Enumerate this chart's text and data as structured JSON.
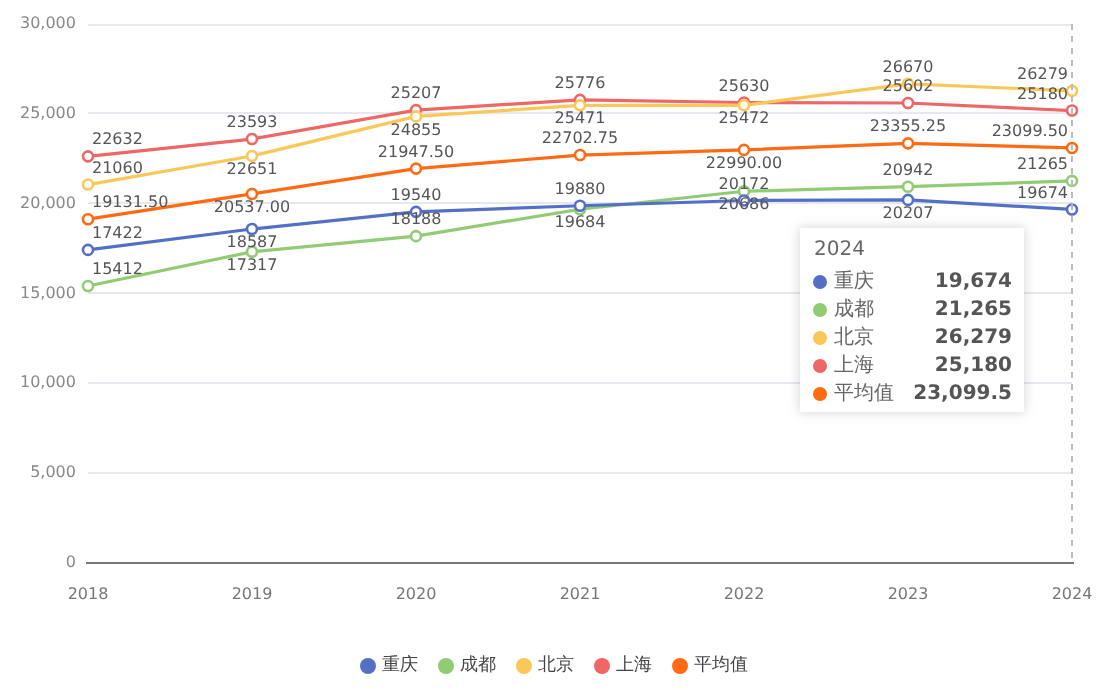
{
  "chart_data": {
    "type": "line",
    "categories": [
      "2018",
      "2019",
      "2020",
      "2021",
      "2022",
      "2023",
      "2024"
    ],
    "series": [
      {
        "name": "重庆",
        "color": "#5470c6",
        "values": [
          17422,
          18587,
          19540,
          19880,
          20172,
          20207,
          19674
        ]
      },
      {
        "name": "成都",
        "color": "#91cc75",
        "values": [
          15412,
          17317,
          18188,
          19684,
          20686,
          20942,
          21265
        ]
      },
      {
        "name": "北京",
        "color": "#fac858",
        "values": [
          21060,
          22651,
          24855,
          25471,
          25472,
          26670,
          26279
        ]
      },
      {
        "name": "上海",
        "color": "#ee6666",
        "values": [
          22632,
          23593,
          25207,
          25776,
          25630,
          25602,
          25180
        ]
      },
      {
        "name": "平均值",
        "color": "#ff6a13",
        "values": [
          19131.5,
          20537,
          21947.5,
          22702.75,
          22990,
          23355.25,
          23099.5
        ],
        "value_labels": [
          "19131.50",
          "20537.00",
          "21947.50",
          "22702.75",
          "22990.00",
          "23355.25",
          "23099.50"
        ]
      }
    ],
    "ylim": [
      0,
      30000
    ],
    "yticks": [
      {
        "value": 0,
        "label": "0"
      },
      {
        "value": 5000,
        "label": "5,000"
      },
      {
        "value": 10000,
        "label": "10,000"
      },
      {
        "value": 15000,
        "label": "15,000"
      },
      {
        "value": 20000,
        "label": "20,000"
      },
      {
        "value": 25000,
        "label": "25,000"
      },
      {
        "value": 30000,
        "label": "30,000"
      }
    ],
    "annotations": [
      "19,674",
      "21,265",
      "26,279",
      "25,180",
      "23,099.5"
    ],
    "grid": "y",
    "legend": "bottom",
    "marker": "circle",
    "line_style": "solid",
    "data_labels": true
  }
}
